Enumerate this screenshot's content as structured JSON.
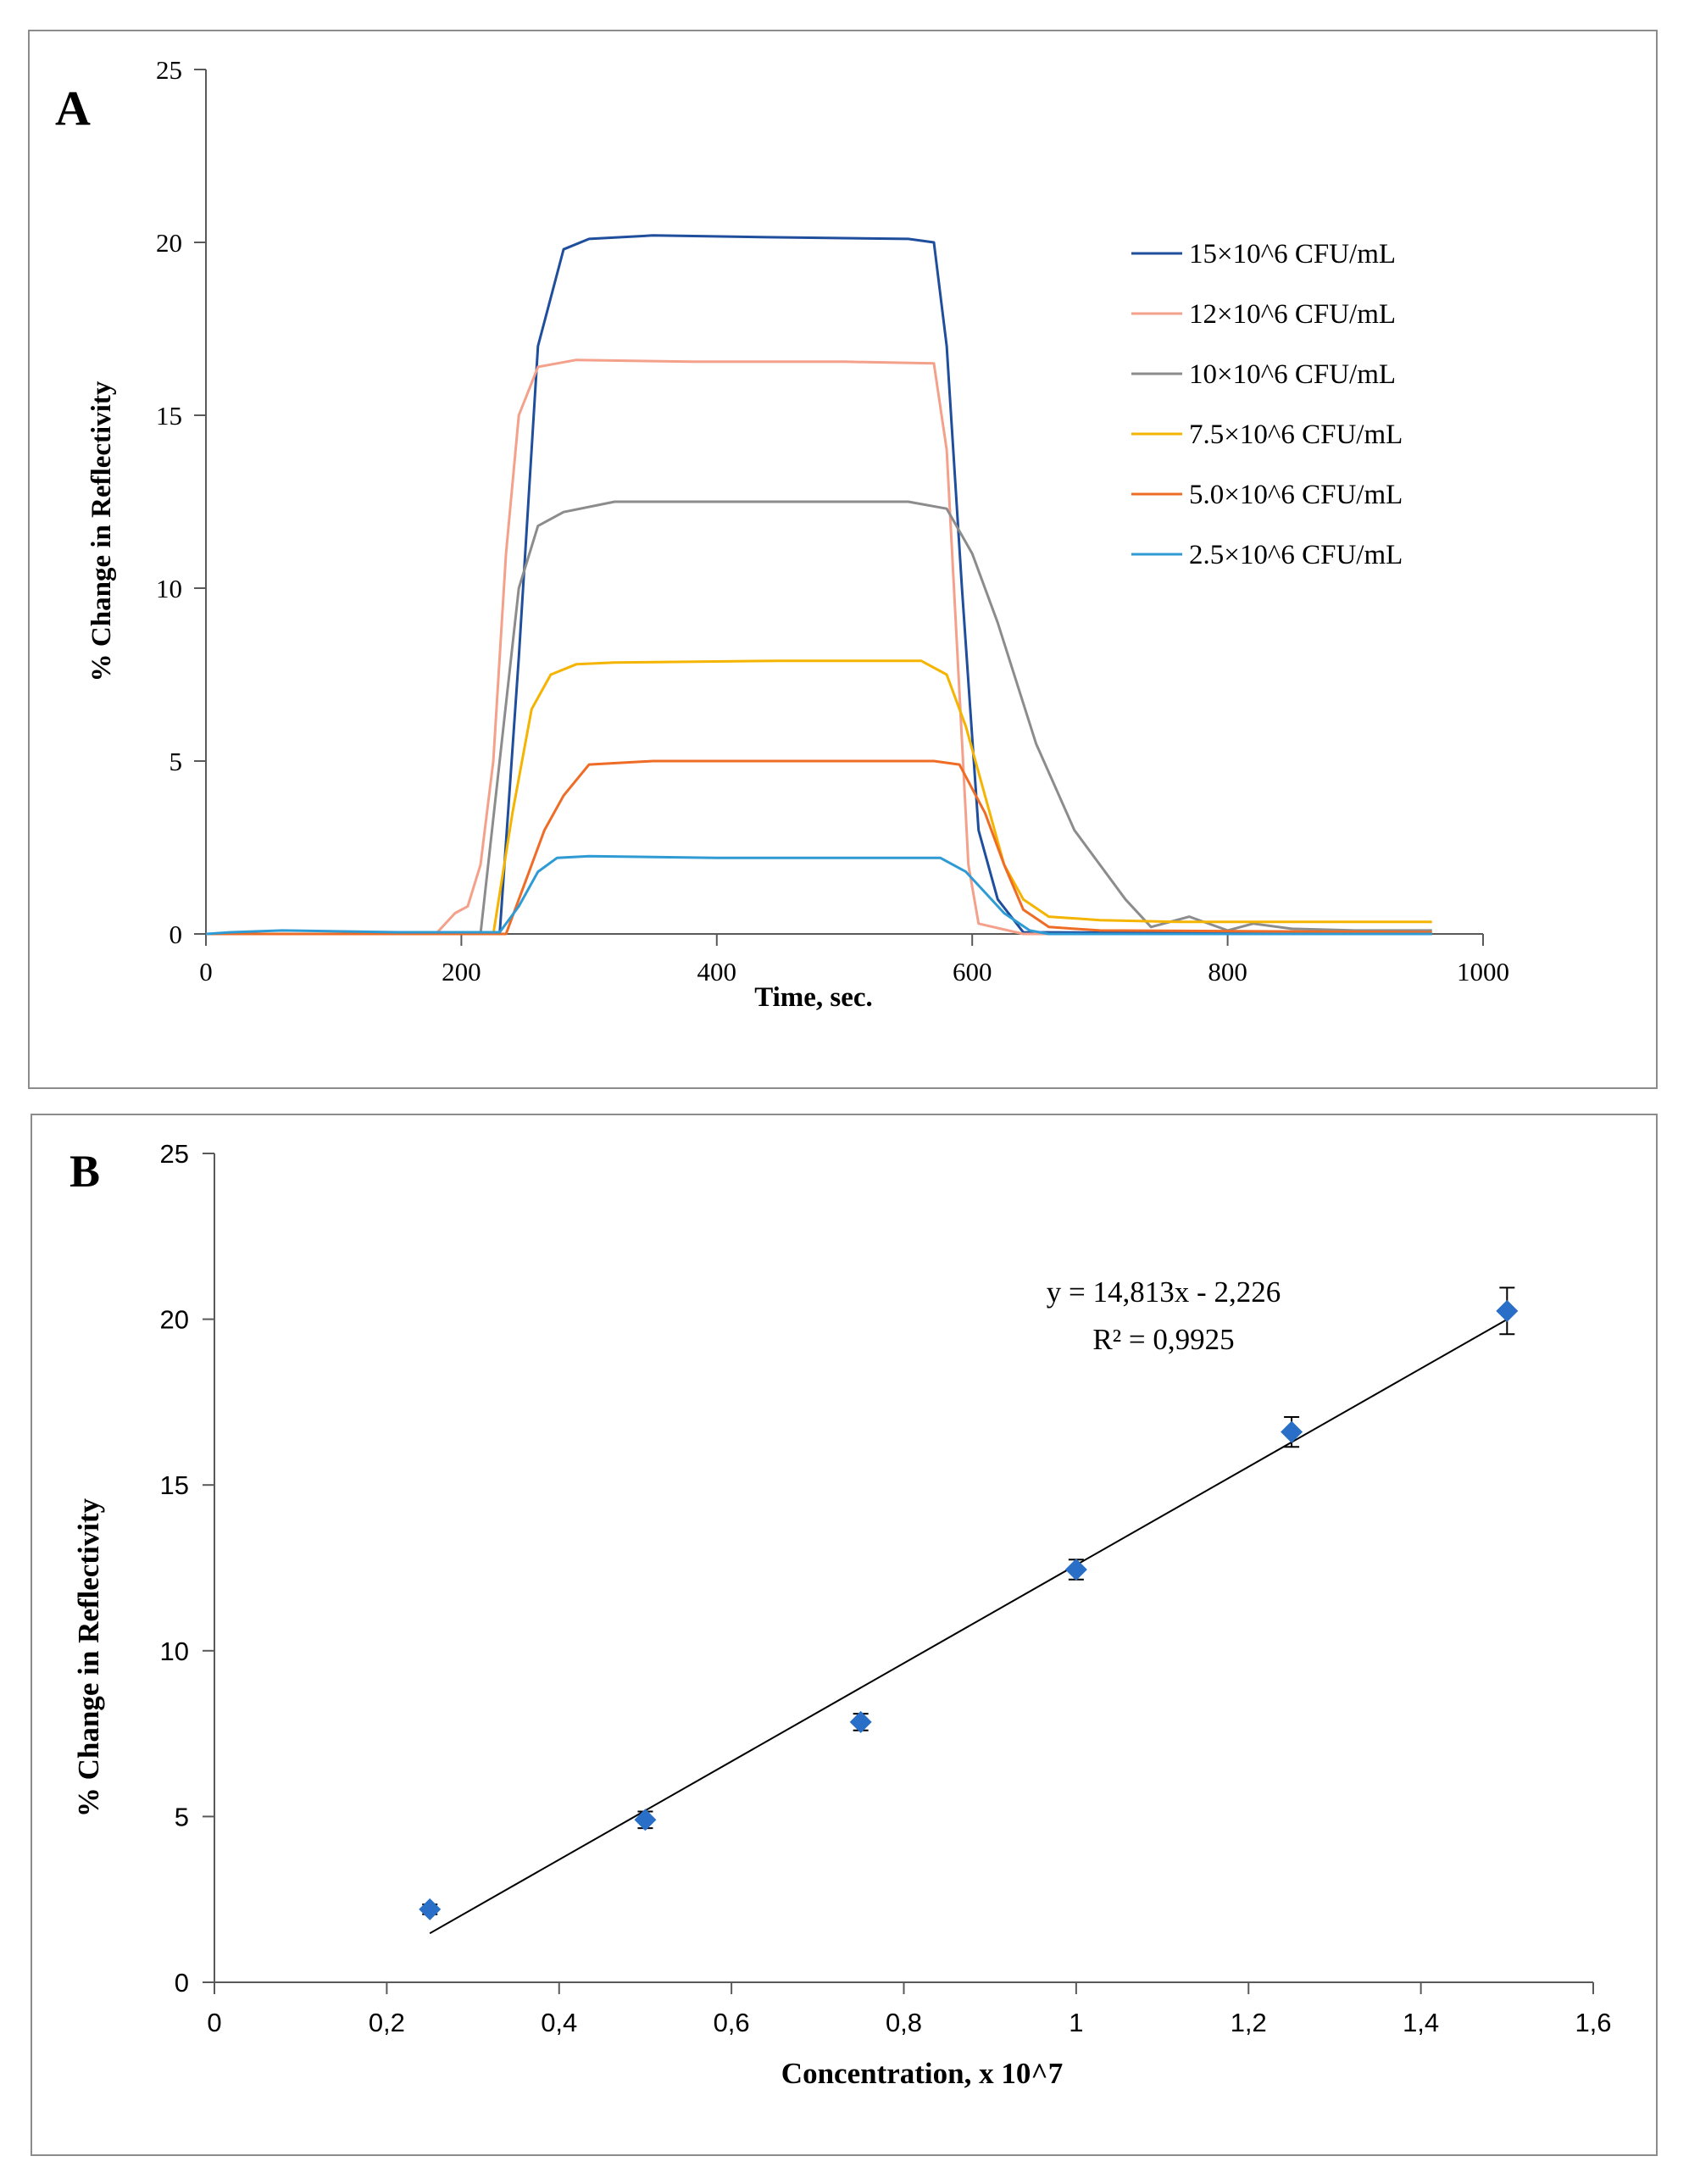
{
  "chart_data": [
    {
      "type": "line",
      "panel_label": "A",
      "xlabel": "Time, sec.",
      "ylabel": "% Change in Reflectivity",
      "xlim": [
        0,
        1000
      ],
      "ylim": [
        0,
        25
      ],
      "xticks": [
        "0",
        "200",
        "400",
        "600",
        "800",
        "1000"
      ],
      "yticks": [
        "0",
        "5",
        "10",
        "15",
        "20",
        "25"
      ],
      "legend_position": "top-right",
      "series": [
        {
          "name": "15×10^6 CFU/mL",
          "color": "#1f4e9c",
          "x": [
            0,
            230,
            245,
            260,
            280,
            300,
            350,
            440,
            550,
            570,
            580,
            592,
            605,
            620,
            640,
            960
          ],
          "y": [
            0,
            0,
            8,
            17,
            19.8,
            20.1,
            20.2,
            20.15,
            20.1,
            20.0,
            17,
            10,
            3,
            1,
            0.05,
            0
          ]
        },
        {
          "name": "12×10^6 CFU/mL",
          "color": "#f4a08a",
          "x": [
            0,
            180,
            195,
            205,
            215,
            225,
            235,
            245,
            260,
            290,
            380,
            500,
            570,
            580,
            590,
            597,
            605,
            640,
            960
          ],
          "y": [
            0,
            0,
            0.6,
            0.8,
            2,
            5,
            11,
            15,
            16.4,
            16.6,
            16.55,
            16.55,
            16.5,
            14,
            7,
            2,
            0.3,
            0,
            0
          ]
        },
        {
          "name": "10×10^6 CFU/mL",
          "color": "#8c8c8c",
          "x": [
            0,
            215,
            230,
            245,
            260,
            280,
            320,
            450,
            550,
            580,
            600,
            620,
            650,
            680,
            720,
            740,
            770,
            800,
            820,
            850,
            900,
            960
          ],
          "y": [
            0,
            0,
            5,
            10,
            11.8,
            12.2,
            12.5,
            12.5,
            12.5,
            12.3,
            11,
            9,
            5.5,
            3,
            1,
            0.2,
            0.5,
            0.1,
            0.3,
            0.15,
            0.1,
            0.1
          ]
        },
        {
          "name": "7.5×10^6 CFU/mL",
          "color": "#f5b400",
          "x": [
            0,
            225,
            240,
            255,
            270,
            290,
            320,
            450,
            560,
            580,
            595,
            610,
            625,
            640,
            660,
            700,
            760,
            960
          ],
          "y": [
            0,
            0,
            3.5,
            6.5,
            7.5,
            7.8,
            7.85,
            7.9,
            7.9,
            7.5,
            6,
            4,
            2,
            1,
            0.5,
            0.4,
            0.35,
            0.35
          ]
        },
        {
          "name": "5.0×10^6 CFU/mL",
          "color": "#ee6c26",
          "x": [
            0,
            235,
            250,
            265,
            280,
            300,
            350,
            450,
            570,
            590,
            610,
            625,
            640,
            660,
            700,
            960
          ],
          "y": [
            0,
            0,
            1.5,
            3,
            4,
            4.9,
            5,
            5,
            5,
            4.9,
            3.5,
            2,
            0.7,
            0.2,
            0.1,
            0.05
          ]
        },
        {
          "name": "2.5×10^6 CFU/mL",
          "color": "#2f9bd4",
          "x": [
            0,
            20,
            60,
            150,
            230,
            245,
            260,
            275,
            300,
            400,
            500,
            575,
            595,
            610,
            625,
            645,
            660,
            960
          ],
          "y": [
            0,
            0.05,
            0.1,
            0.05,
            0.05,
            0.8,
            1.8,
            2.2,
            2.25,
            2.2,
            2.2,
            2.2,
            1.8,
            1.2,
            0.6,
            0.1,
            0,
            0
          ]
        }
      ]
    },
    {
      "type": "scatter",
      "panel_label": "B",
      "xlabel": "Concentration,   x 10^7",
      "ylabel": "% Change in Reflectivity",
      "xlim": [
        0,
        1.6
      ],
      "ylim": [
        0,
        25
      ],
      "xticks": [
        "0",
        "0,2",
        "0,4",
        "0,6",
        "0,8",
        "1",
        "1,2",
        "1,4",
        "1,6"
      ],
      "yticks": [
        "0",
        "5",
        "10",
        "15",
        "20",
        "25"
      ],
      "points": {
        "x": [
          0.25,
          0.5,
          0.75,
          1.0,
          1.25,
          1.5
        ],
        "y": [
          2.2,
          4.9,
          7.85,
          12.45,
          16.6,
          20.25
        ],
        "error": [
          0.15,
          0.25,
          0.25,
          0.3,
          0.45,
          0.7
        ]
      },
      "marker_color": "#2a6fc7",
      "trendline": {
        "slope": 14.813,
        "intercept": -2.226,
        "x_range": [
          0.25,
          1.5
        ]
      },
      "equation_text": "y = 14,813x   - 2,226",
      "r2_text": "R² = 0,9925"
    }
  ]
}
